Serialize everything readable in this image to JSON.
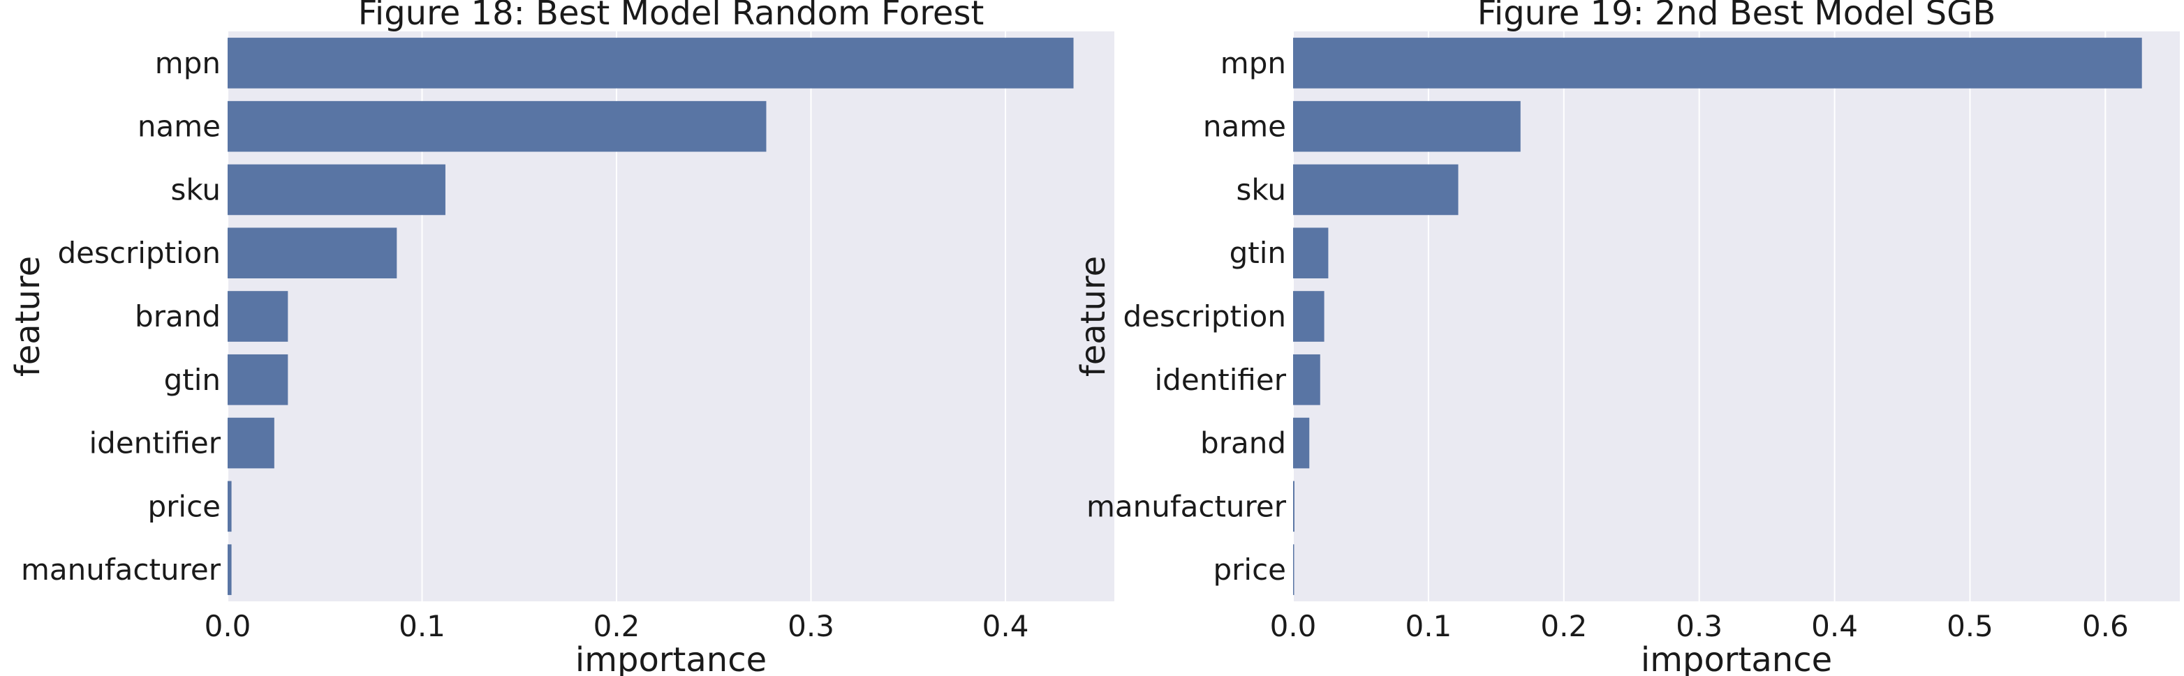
{
  "chart_data": [
    {
      "type": "bar",
      "orientation": "horizontal",
      "title": "Figure 18: Best Model Random Forest",
      "xlabel": "importance",
      "ylabel": "feature",
      "categories": [
        "mpn",
        "name",
        "sku",
        "description",
        "brand",
        "gtin",
        "identifier",
        "price",
        "manufacturer"
      ],
      "values": [
        0.435,
        0.277,
        0.112,
        0.087,
        0.031,
        0.031,
        0.024,
        0.002,
        0.002
      ],
      "xlim": [
        0,
        0.456
      ],
      "xticks": [
        0.0,
        0.1,
        0.2,
        0.3,
        0.4
      ],
      "xtick_labels": [
        "0.0",
        "0.1",
        "0.2",
        "0.3",
        "0.4"
      ],
      "grid": true,
      "bar_color": "#5975a4",
      "background_color": "#eaeaf2",
      "grid_color": "#ffffff"
    },
    {
      "type": "bar",
      "orientation": "horizontal",
      "title": "Figure 19: 2nd Best Model SGB",
      "xlabel": "importance",
      "ylabel": "feature",
      "categories": [
        "mpn",
        "name",
        "sku",
        "gtin",
        "description",
        "identifier",
        "brand",
        "manufacturer",
        "price"
      ],
      "values": [
        0.627,
        0.168,
        0.122,
        0.026,
        0.023,
        0.02,
        0.012,
        0.001,
        0.0005
      ],
      "xlim": [
        0,
        0.655
      ],
      "xticks": [
        0.0,
        0.1,
        0.2,
        0.3,
        0.4,
        0.5,
        0.6
      ],
      "xtick_labels": [
        "0.0",
        "0.1",
        "0.2",
        "0.3",
        "0.4",
        "0.5",
        "0.6"
      ],
      "grid": true,
      "bar_color": "#5975a4",
      "background_color": "#eaeaf2",
      "grid_color": "#ffffff"
    }
  ]
}
